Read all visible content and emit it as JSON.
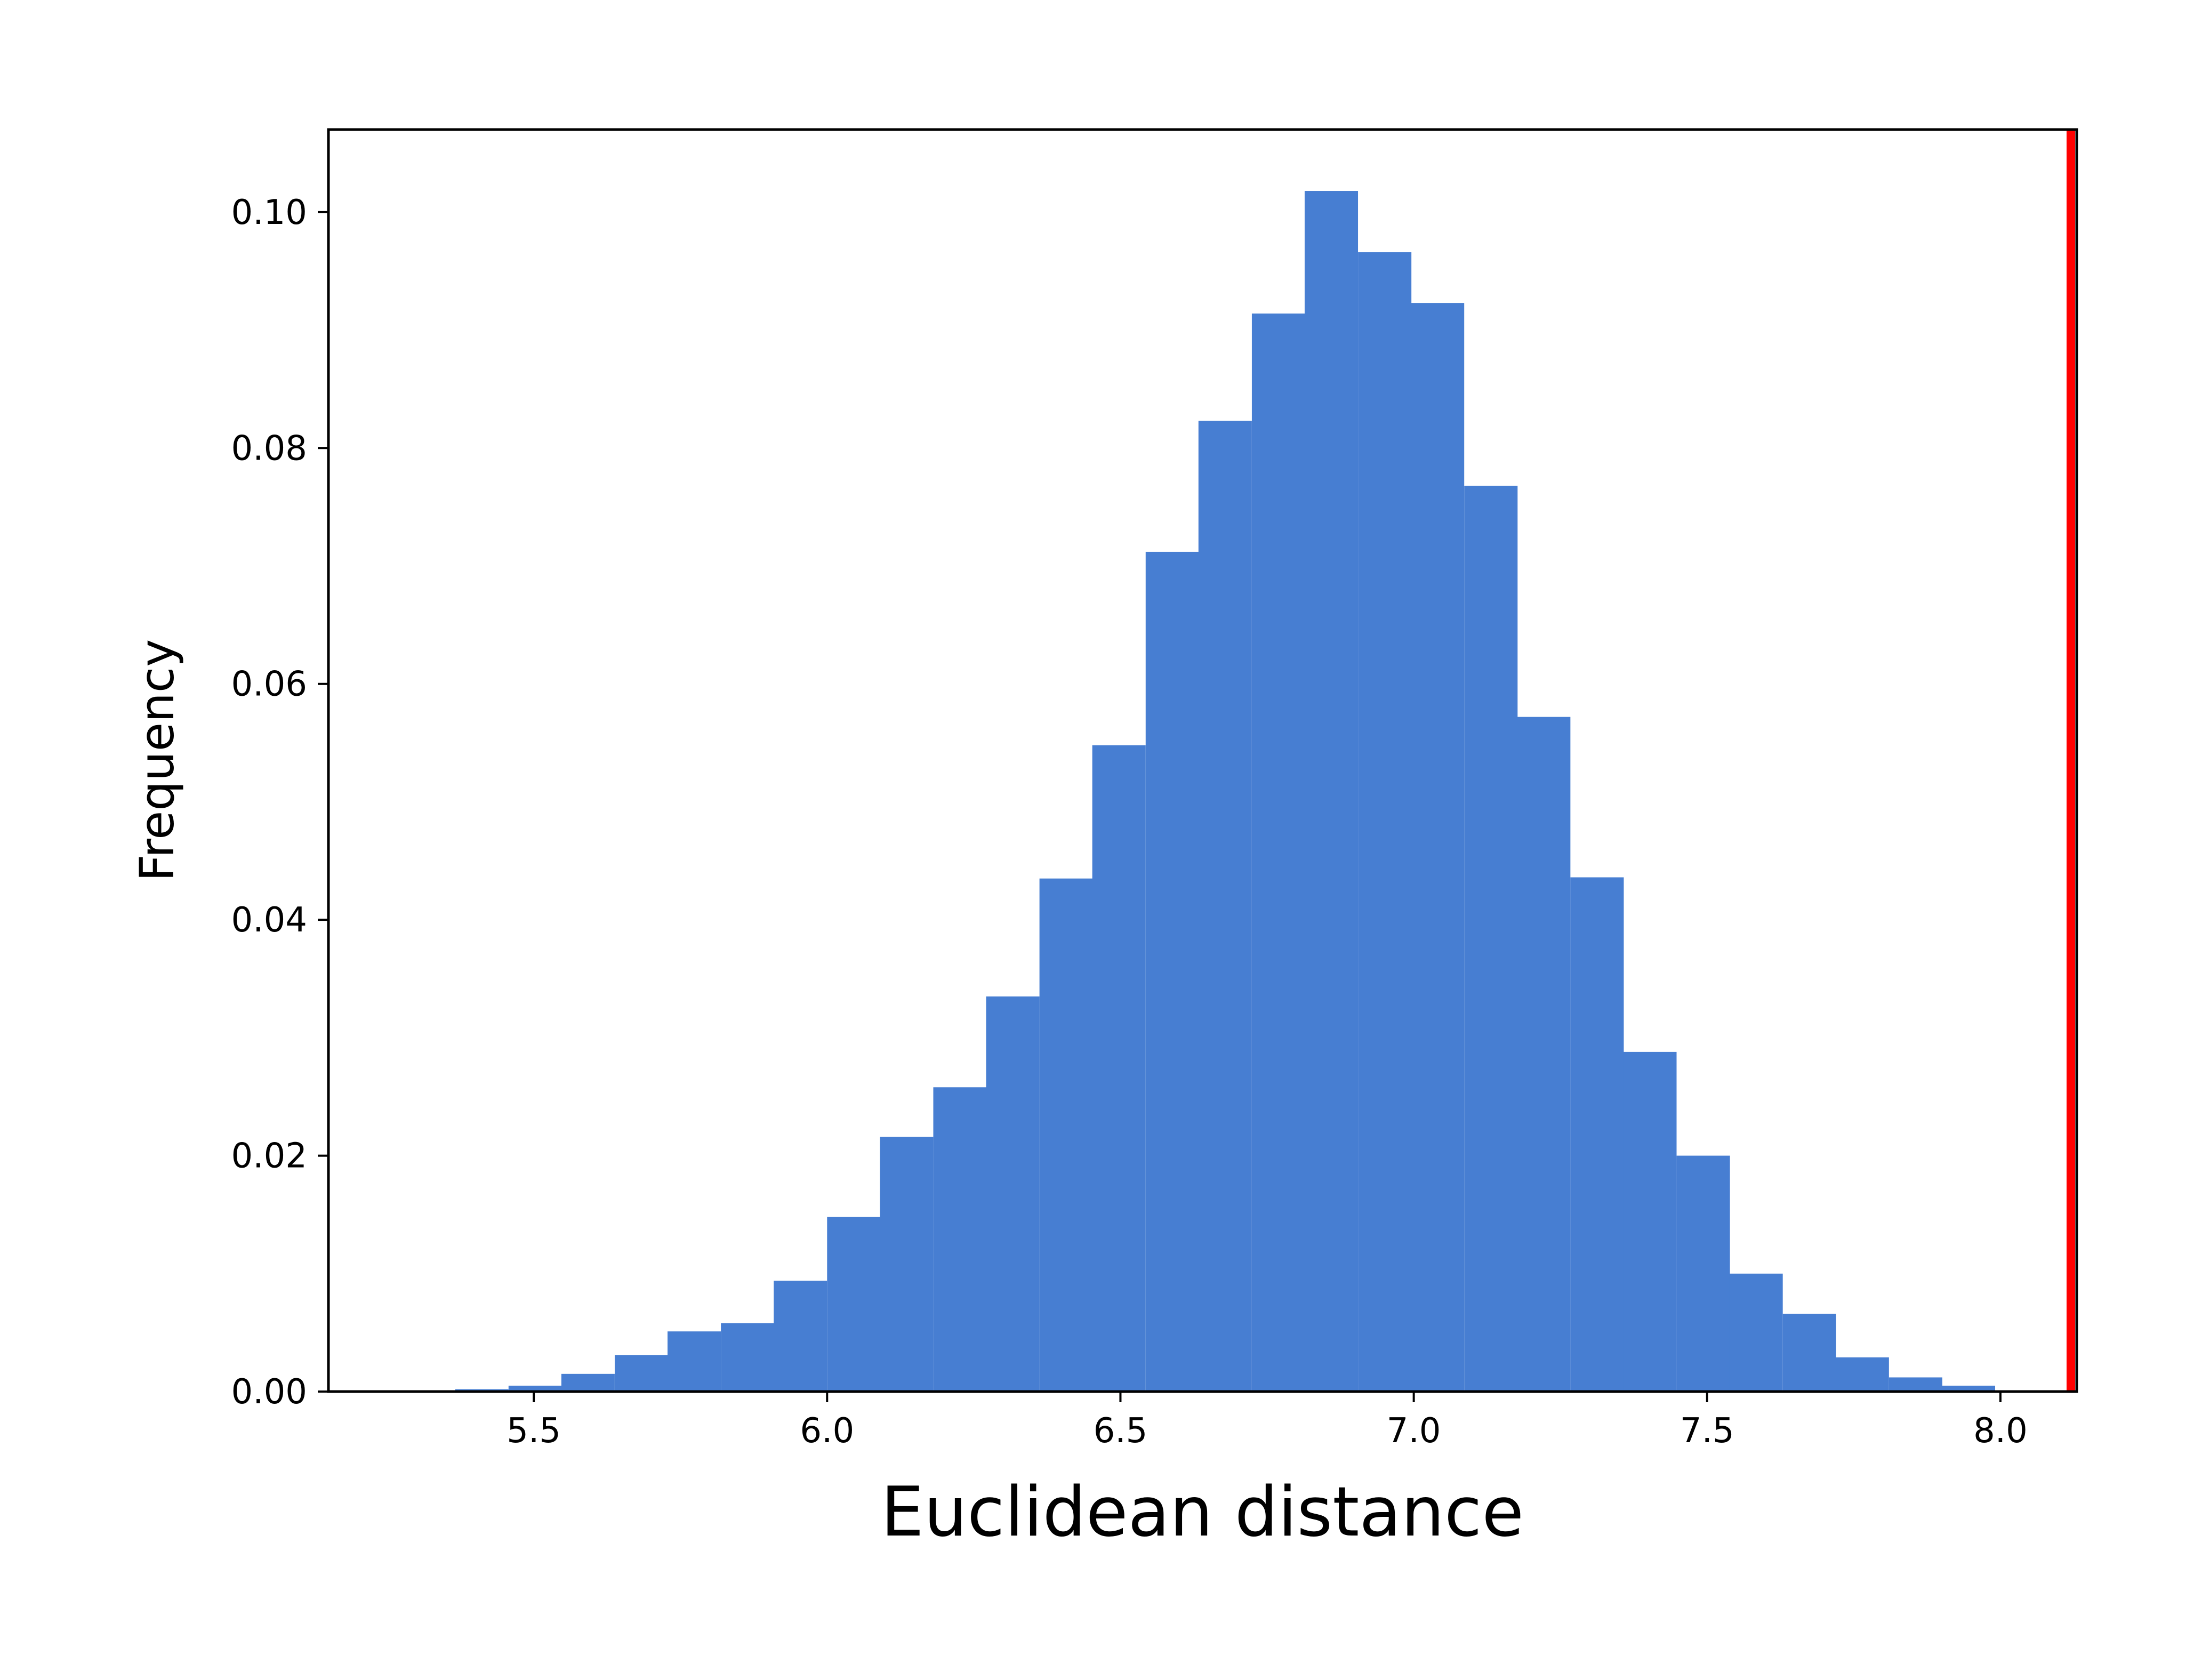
{
  "chart_data": {
    "type": "bar",
    "title": "",
    "xlabel": "Euclidean distance",
    "ylabel": "Frequency",
    "xlim": [
      5.15,
      8.13
    ],
    "ylim": [
      0,
      0.107
    ],
    "x_ticks": [
      "5.5",
      "6.0",
      "6.5",
      "7.0",
      "7.5",
      "8.0"
    ],
    "y_ticks": [
      "0.00",
      "0.02",
      "0.04",
      "0.06",
      "0.08",
      "0.10"
    ],
    "grid": false,
    "legend": "none",
    "bar_color": "#477ed2",
    "bin_width": 0.0905,
    "bins": [
      {
        "x0": 5.366,
        "height": 0.0002
      },
      {
        "x0": 5.457,
        "height": 0.0005
      },
      {
        "x0": 5.547,
        "height": 0.0015
      },
      {
        "x0": 5.638,
        "height": 0.0031
      },
      {
        "x0": 5.728,
        "height": 0.0051
      },
      {
        "x0": 5.819,
        "height": 0.0058
      },
      {
        "x0": 5.909,
        "height": 0.0094
      },
      {
        "x0": 6.0,
        "height": 0.0148
      },
      {
        "x0": 6.09,
        "height": 0.0216
      },
      {
        "x0": 6.181,
        "height": 0.0258
      },
      {
        "x0": 6.271,
        "height": 0.0335
      },
      {
        "x0": 6.362,
        "height": 0.0435
      },
      {
        "x0": 6.452,
        "height": 0.0548
      },
      {
        "x0": 6.543,
        "height": 0.0712
      },
      {
        "x0": 6.633,
        "height": 0.0823
      },
      {
        "x0": 6.724,
        "height": 0.0914
      },
      {
        "x0": 6.814,
        "height": 0.1018
      },
      {
        "x0": 6.905,
        "height": 0.0966
      },
      {
        "x0": 6.995,
        "height": 0.0923
      },
      {
        "x0": 7.086,
        "height": 0.0768
      },
      {
        "x0": 7.176,
        "height": 0.0572
      },
      {
        "x0": 7.267,
        "height": 0.0436
      },
      {
        "x0": 7.357,
        "height": 0.0288
      },
      {
        "x0": 7.448,
        "height": 0.02
      },
      {
        "x0": 7.538,
        "height": 0.01
      },
      {
        "x0": 7.629,
        "height": 0.0066
      },
      {
        "x0": 7.719,
        "height": 0.0029
      },
      {
        "x0": 7.81,
        "height": 0.0012
      },
      {
        "x0": 7.9,
        "height": 0.0005
      }
    ],
    "reference_line": {
      "x": 8.12,
      "color": "#ff0000"
    }
  }
}
